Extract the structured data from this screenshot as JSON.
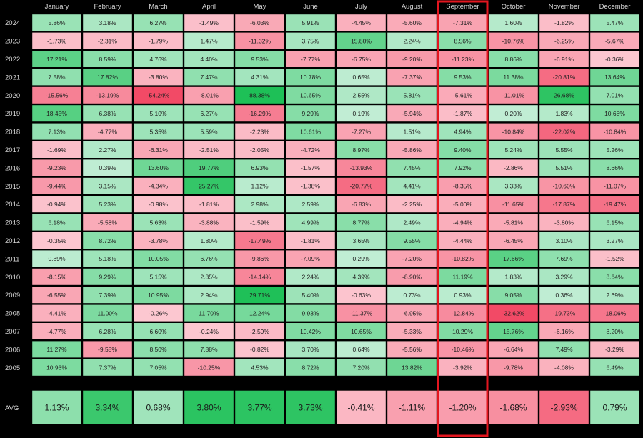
{
  "chart_data": {
    "type": "heatmap",
    "title": "",
    "xlabel": "",
    "ylabel": "",
    "value_unit": "%",
    "highlight_column": "September",
    "highlight_color": "#e3161f",
    "background_color": "#000000",
    "months": [
      "January",
      "February",
      "March",
      "April",
      "May",
      "June",
      "July",
      "August",
      "September",
      "October",
      "November",
      "December"
    ],
    "rows": [
      {
        "year": "2024",
        "values": [
          5.86,
          3.18,
          6.27,
          -1.49,
          -6.03,
          5.91,
          -4.45,
          -5.6,
          -7.31,
          1.6,
          -1.82,
          5.47
        ]
      },
      {
        "year": "2023",
        "values": [
          -1.73,
          -2.31,
          -1.79,
          1.47,
          -11.32,
          3.75,
          15.8,
          2.24,
          8.56,
          -10.76,
          -6.25,
          -5.67
        ]
      },
      {
        "year": "2022",
        "values": [
          17.21,
          8.59,
          4.76,
          4.4,
          9.53,
          -7.77,
          -6.75,
          -9.2,
          -11.23,
          8.86,
          -6.91,
          -0.36
        ]
      },
      {
        "year": "2021",
        "values": [
          7.58,
          17.82,
          -3.8,
          7.47,
          4.31,
          10.78,
          0.65,
          -7.37,
          9.53,
          11.38,
          -20.81,
          13.64
        ]
      },
      {
        "year": "2020",
        "values": [
          -15.56,
          -13.19,
          -54.24,
          -8.01,
          88.38,
          10.65,
          2.55,
          5.81,
          -5.61,
          -11.01,
          26.68,
          7.01
        ]
      },
      {
        "year": "2019",
        "values": [
          18.45,
          6.38,
          5.1,
          6.27,
          -16.29,
          9.29,
          0.19,
          -5.94,
          -1.87,
          0.2,
          1.83,
          10.68
        ]
      },
      {
        "year": "2018",
        "values": [
          7.13,
          -4.77,
          5.35,
          5.59,
          -2.23,
          10.61,
          -7.27,
          1.51,
          4.94,
          -10.84,
          -22.02,
          -10.84
        ]
      },
      {
        "year": "2017",
        "values": [
          -1.69,
          2.27,
          -6.31,
          -2.51,
          -2.05,
          -4.72,
          8.97,
          -5.86,
          9.4,
          5.24,
          5.55,
          5.26
        ]
      },
      {
        "year": "2016",
        "values": [
          -9.23,
          0.39,
          13.6,
          19.77,
          6.93,
          -1.57,
          -13.93,
          7.45,
          7.92,
          -2.86,
          5.51,
          8.66
        ]
      },
      {
        "year": "2015",
        "values": [
          -9.44,
          3.15,
          -4.34,
          25.27,
          1.12,
          -1.38,
          -20.77,
          4.41,
          -8.35,
          3.33,
          -10.6,
          -11.07
        ]
      },
      {
        "year": "2014",
        "values": [
          -0.94,
          5.23,
          -0.98,
          -1.81,
          2.98,
          2.59,
          -6.83,
          -2.25,
          -5.0,
          -11.65,
          -17.87,
          -19.47
        ]
      },
      {
        "year": "2013",
        "values": [
          6.18,
          -5.58,
          5.63,
          -3.88,
          -1.59,
          4.99,
          8.77,
          2.49,
          -4.94,
          -5.81,
          -3.8,
          6.15
        ]
      },
      {
        "year": "2012",
        "values": [
          -0.35,
          8.72,
          -3.78,
          1.8,
          -17.49,
          -1.81,
          3.65,
          9.55,
          -4.44,
          -6.45,
          3.1,
          3.27
        ]
      },
      {
        "year": "2011",
        "values": [
          0.89,
          5.18,
          10.05,
          6.76,
          -9.86,
          -7.09,
          0.29,
          -7.2,
          -10.82,
          17.66,
          7.69,
          -1.52
        ]
      },
      {
        "year": "2010",
        "values": [
          -8.15,
          9.29,
          5.15,
          2.85,
          -14.14,
          2.24,
          4.39,
          -8.9,
          11.19,
          1.83,
          3.29,
          8.64
        ]
      },
      {
        "year": "2009",
        "values": [
          -6.55,
          7.39,
          10.95,
          2.94,
          29.71,
          5.4,
          -0.63,
          0.73,
          0.93,
          9.05,
          0.36,
          2.69
        ]
      },
      {
        "year": "2008",
        "values": [
          -4.41,
          11.0,
          -0.26,
          11.7,
          12.24,
          9.93,
          -11.37,
          -6.95,
          -12.84,
          -32.62,
          -19.73,
          -18.06
        ]
      },
      {
        "year": "2007",
        "values": [
          -4.77,
          6.28,
          6.6,
          -0.24,
          -2.59,
          10.42,
          10.65,
          -5.33,
          10.29,
          15.76,
          -6.16,
          8.2
        ]
      },
      {
        "year": "2006",
        "values": [
          11.27,
          -9.58,
          8.5,
          7.88,
          -0.82,
          3.7,
          0.64,
          -5.56,
          -10.46,
          -6.64,
          7.49,
          -3.29
        ]
      },
      {
        "year": "2005",
        "values": [
          10.93,
          7.37,
          7.05,
          -10.25,
          4.53,
          8.72,
          7.2,
          13.82,
          -3.92,
          -9.78,
          -4.08,
          6.49
        ]
      }
    ],
    "average_row": {
      "label": "AVG",
      "values": [
        1.13,
        3.34,
        0.68,
        3.8,
        3.77,
        3.73,
        -0.41,
        -1.11,
        -1.2,
        -1.68,
        -2.93,
        0.79
      ]
    },
    "colors": {
      "pos_light": "#c3eed6",
      "pos_dark": "#1ec057",
      "neg_light": "#fcc9d2",
      "neg_dark": "#f24a66"
    }
  }
}
